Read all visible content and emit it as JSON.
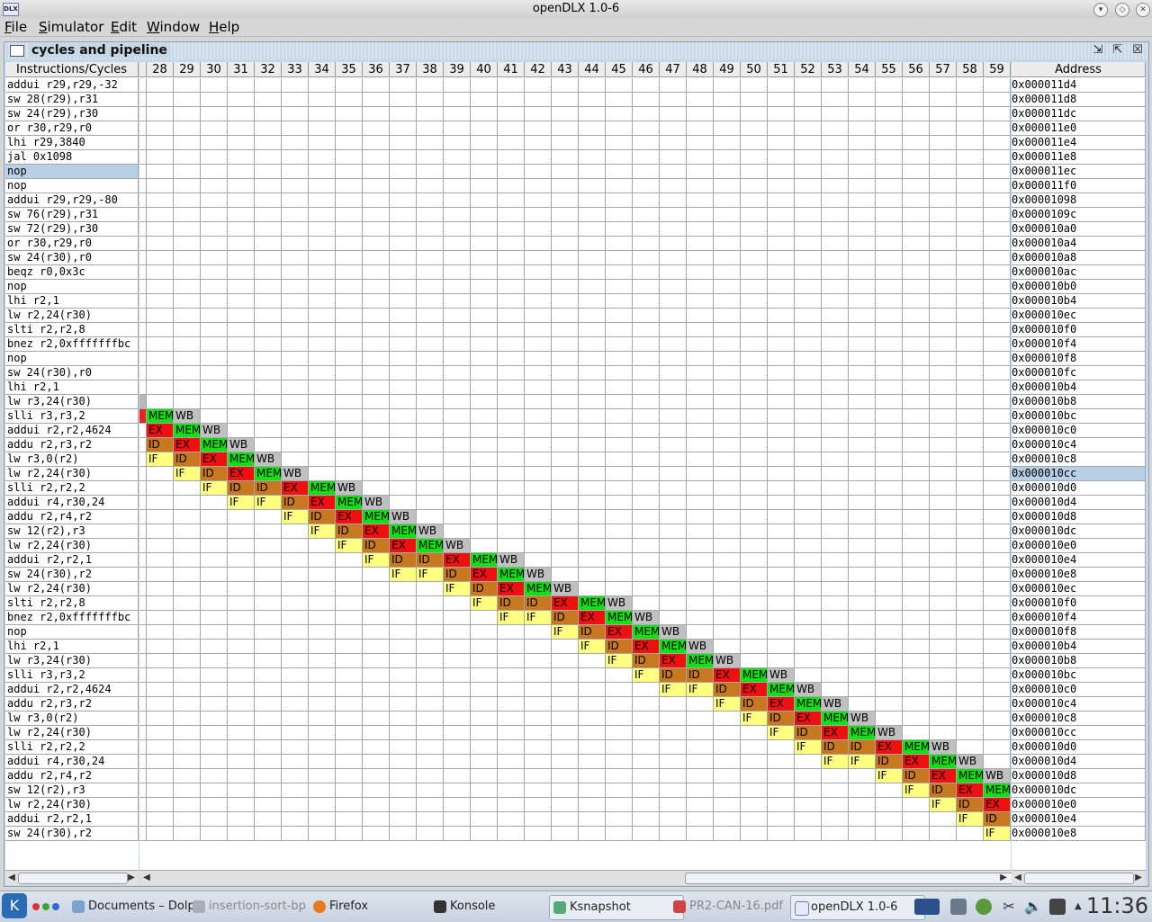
{
  "window": {
    "title": "openDLX 1.0-6",
    "logo": "DLX"
  },
  "menu": [
    {
      "mnemonic": "F",
      "rest": "ile"
    },
    {
      "mnemonic": "S",
      "rest": "imulator"
    },
    {
      "mnemonic": "E",
      "rest": "dit"
    },
    {
      "mnemonic": "W",
      "rest": "indow"
    },
    {
      "mnemonic": "H",
      "rest": "elp"
    }
  ],
  "frame": {
    "title": "cycles and pipeline"
  },
  "table": {
    "instr_header": "Instructions/Cycles",
    "addr_header": "Address",
    "cycles": [
      "28",
      "29",
      "30",
      "31",
      "32",
      "33",
      "34",
      "35",
      "36",
      "37",
      "38",
      "39",
      "40",
      "41",
      "42",
      "43",
      "44",
      "45",
      "46",
      "47",
      "48",
      "49",
      "50",
      "51",
      "52",
      "53",
      "54",
      "55",
      "56",
      "57",
      "58",
      "59"
    ],
    "first_cycle": 28,
    "selected_instruction_row": 6,
    "selected_address_row": 27,
    "rows": [
      {
        "instr": "addui r29,r29,-32",
        "addr": "0x000011d4",
        "stages": []
      },
      {
        "instr": "sw 28(r29),r31",
        "addr": "0x000011d8",
        "stages": []
      },
      {
        "instr": "sw 24(r29),r30",
        "addr": "0x000011dc",
        "stages": []
      },
      {
        "instr": "or r30,r29,r0",
        "addr": "0x000011e0",
        "stages": []
      },
      {
        "instr": "lhi r29,3840",
        "addr": "0x000011e4",
        "stages": []
      },
      {
        "instr": "jal 0x1098",
        "addr": "0x000011e8",
        "stages": []
      },
      {
        "instr": "nop",
        "addr": "0x000011ec",
        "stages": []
      },
      {
        "instr": "nop",
        "addr": "0x000011f0",
        "stages": []
      },
      {
        "instr": "addui r29,r29,-80",
        "addr": "0x00001098",
        "stages": []
      },
      {
        "instr": "sw 76(r29),r31",
        "addr": "0x0000109c",
        "stages": []
      },
      {
        "instr": "sw 72(r29),r30",
        "addr": "0x000010a0",
        "stages": []
      },
      {
        "instr": "or r30,r29,r0",
        "addr": "0x000010a4",
        "stages": []
      },
      {
        "instr": "sw 24(r30),r0",
        "addr": "0x000010a8",
        "stages": []
      },
      {
        "instr": "beqz r0,0x3c",
        "addr": "0x000010ac",
        "stages": []
      },
      {
        "instr": "nop",
        "addr": "0x000010b0",
        "stages": []
      },
      {
        "instr": "lhi r2,1",
        "addr": "0x000010b4",
        "stages": []
      },
      {
        "instr": "lw r2,24(r30)",
        "addr": "0x000010ec",
        "stages": []
      },
      {
        "instr": "slti r2,r2,8",
        "addr": "0x000010f0",
        "stages": []
      },
      {
        "instr": "bnez r2,0xfffffffbc",
        "addr": "0x000010f4",
        "stages": []
      },
      {
        "instr": "nop",
        "addr": "0x000010f8",
        "stages": []
      },
      {
        "instr": "sw 24(r30),r0",
        "addr": "0x000010fc",
        "stages": []
      },
      {
        "instr": "lhi r2,1",
        "addr": "0x000010b4",
        "stages": []
      },
      {
        "instr": "lw r3,24(r30)",
        "addr": "0x000010b8",
        "stages": [
          [
            27,
            ""
          ]
        ]
      },
      {
        "instr": "slli r3,r3,2",
        "addr": "0x000010bc",
        "stages": [
          [
            27,
            ""
          ],
          [
            28,
            "MEM"
          ],
          [
            29,
            "WB"
          ]
        ]
      },
      {
        "instr": "addui r2,r2,4624",
        "addr": "0x000010c0",
        "stages": [
          [
            28,
            "EX"
          ],
          [
            29,
            "MEM"
          ],
          [
            30,
            "WB"
          ]
        ]
      },
      {
        "instr": "addu r2,r3,r2",
        "addr": "0x000010c4",
        "stages": [
          [
            28,
            "ID"
          ],
          [
            29,
            "EX"
          ],
          [
            30,
            "MEM"
          ],
          [
            31,
            "WB"
          ]
        ]
      },
      {
        "instr": "lw r3,0(r2)",
        "addr": "0x000010c8",
        "stages": [
          [
            28,
            "IF"
          ],
          [
            29,
            "ID"
          ],
          [
            30,
            "EX"
          ],
          [
            31,
            "MEM"
          ],
          [
            32,
            "WB"
          ]
        ]
      },
      {
        "instr": "lw r2,24(r30)",
        "addr": "0x000010cc",
        "stages": [
          [
            29,
            "IF"
          ],
          [
            30,
            "ID"
          ],
          [
            31,
            "EX"
          ],
          [
            32,
            "MEM"
          ],
          [
            33,
            "WB"
          ]
        ]
      },
      {
        "instr": "slli r2,r2,2",
        "addr": "0x000010d0",
        "stages": [
          [
            30,
            "IF"
          ],
          [
            31,
            "ID"
          ],
          [
            32,
            "ID"
          ],
          [
            33,
            "EX"
          ],
          [
            34,
            "MEM"
          ],
          [
            35,
            "WB"
          ]
        ]
      },
      {
        "instr": "addui r4,r30,24",
        "addr": "0x000010d4",
        "stages": [
          [
            31,
            "IF"
          ],
          [
            32,
            "IF"
          ],
          [
            33,
            "ID"
          ],
          [
            34,
            "EX"
          ],
          [
            35,
            "MEM"
          ],
          [
            36,
            "WB"
          ]
        ]
      },
      {
        "instr": "addu r2,r4,r2",
        "addr": "0x000010d8",
        "stages": [
          [
            33,
            "IF"
          ],
          [
            34,
            "ID"
          ],
          [
            35,
            "EX"
          ],
          [
            36,
            "MEM"
          ],
          [
            37,
            "WB"
          ]
        ]
      },
      {
        "instr": "sw 12(r2),r3",
        "addr": "0x000010dc",
        "stages": [
          [
            34,
            "IF"
          ],
          [
            35,
            "ID"
          ],
          [
            36,
            "EX"
          ],
          [
            37,
            "MEM"
          ],
          [
            38,
            "WB"
          ]
        ]
      },
      {
        "instr": "lw r2,24(r30)",
        "addr": "0x000010e0",
        "stages": [
          [
            35,
            "IF"
          ],
          [
            36,
            "ID"
          ],
          [
            37,
            "EX"
          ],
          [
            38,
            "MEM"
          ],
          [
            39,
            "WB"
          ]
        ]
      },
      {
        "instr": "addui r2,r2,1",
        "addr": "0x000010e4",
        "stages": [
          [
            36,
            "IF"
          ],
          [
            37,
            "ID"
          ],
          [
            38,
            "ID"
          ],
          [
            39,
            "EX"
          ],
          [
            40,
            "MEM"
          ],
          [
            41,
            "WB"
          ]
        ]
      },
      {
        "instr": "sw 24(r30),r2",
        "addr": "0x000010e8",
        "stages": [
          [
            37,
            "IF"
          ],
          [
            38,
            "IF"
          ],
          [
            39,
            "ID"
          ],
          [
            40,
            "EX"
          ],
          [
            41,
            "MEM"
          ],
          [
            42,
            "WB"
          ]
        ]
      },
      {
        "instr": "lw r2,24(r30)",
        "addr": "0x000010ec",
        "stages": [
          [
            39,
            "IF"
          ],
          [
            40,
            "ID"
          ],
          [
            41,
            "EX"
          ],
          [
            42,
            "MEM"
          ],
          [
            43,
            "WB"
          ]
        ]
      },
      {
        "instr": "slti r2,r2,8",
        "addr": "0x000010f0",
        "stages": [
          [
            40,
            "IF"
          ],
          [
            41,
            "ID"
          ],
          [
            42,
            "ID"
          ],
          [
            43,
            "EX"
          ],
          [
            44,
            "MEM"
          ],
          [
            45,
            "WB"
          ]
        ]
      },
      {
        "instr": "bnez r2,0xfffffffbc",
        "addr": "0x000010f4",
        "stages": [
          [
            41,
            "IF"
          ],
          [
            42,
            "IF"
          ],
          [
            43,
            "ID"
          ],
          [
            44,
            "EX"
          ],
          [
            45,
            "MEM"
          ],
          [
            46,
            "WB"
          ]
        ]
      },
      {
        "instr": "nop",
        "addr": "0x000010f8",
        "stages": [
          [
            43,
            "IF"
          ],
          [
            44,
            "ID"
          ],
          [
            45,
            "EX"
          ],
          [
            46,
            "MEM"
          ],
          [
            47,
            "WB"
          ]
        ]
      },
      {
        "instr": "lhi r2,1",
        "addr": "0x000010b4",
        "stages": [
          [
            44,
            "IF"
          ],
          [
            45,
            "ID"
          ],
          [
            46,
            "EX"
          ],
          [
            47,
            "MEM"
          ],
          [
            48,
            "WB"
          ]
        ]
      },
      {
        "instr": "lw r3,24(r30)",
        "addr": "0x000010b8",
        "stages": [
          [
            45,
            "IF"
          ],
          [
            46,
            "ID"
          ],
          [
            47,
            "EX"
          ],
          [
            48,
            "MEM"
          ],
          [
            49,
            "WB"
          ]
        ]
      },
      {
        "instr": "slli r3,r3,2",
        "addr": "0x000010bc",
        "stages": [
          [
            46,
            "IF"
          ],
          [
            47,
            "ID"
          ],
          [
            48,
            "ID"
          ],
          [
            49,
            "EX"
          ],
          [
            50,
            "MEM"
          ],
          [
            51,
            "WB"
          ]
        ]
      },
      {
        "instr": "addui r2,r2,4624",
        "addr": "0x000010c0",
        "stages": [
          [
            47,
            "IF"
          ],
          [
            48,
            "IF"
          ],
          [
            49,
            "ID"
          ],
          [
            50,
            "EX"
          ],
          [
            51,
            "MEM"
          ],
          [
            52,
            "WB"
          ]
        ]
      },
      {
        "instr": "addu r2,r3,r2",
        "addr": "0x000010c4",
        "stages": [
          [
            49,
            "IF"
          ],
          [
            50,
            "ID"
          ],
          [
            51,
            "EX"
          ],
          [
            52,
            "MEM"
          ],
          [
            53,
            "WB"
          ]
        ]
      },
      {
        "instr": "lw r3,0(r2)",
        "addr": "0x000010c8",
        "stages": [
          [
            50,
            "IF"
          ],
          [
            51,
            "ID"
          ],
          [
            52,
            "EX"
          ],
          [
            53,
            "MEM"
          ],
          [
            54,
            "WB"
          ]
        ]
      },
      {
        "instr": "lw r2,24(r30)",
        "addr": "0x000010cc",
        "stages": [
          [
            51,
            "IF"
          ],
          [
            52,
            "ID"
          ],
          [
            53,
            "EX"
          ],
          [
            54,
            "MEM"
          ],
          [
            55,
            "WB"
          ]
        ]
      },
      {
        "instr": "slli r2,r2,2",
        "addr": "0x000010d0",
        "stages": [
          [
            52,
            "IF"
          ],
          [
            53,
            "ID"
          ],
          [
            54,
            "ID"
          ],
          [
            55,
            "EX"
          ],
          [
            56,
            "MEM"
          ],
          [
            57,
            "WB"
          ]
        ]
      },
      {
        "instr": "addui r4,r30,24",
        "addr": "0x000010d4",
        "stages": [
          [
            53,
            "IF"
          ],
          [
            54,
            "IF"
          ],
          [
            55,
            "ID"
          ],
          [
            56,
            "EX"
          ],
          [
            57,
            "MEM"
          ],
          [
            58,
            "WB"
          ]
        ]
      },
      {
        "instr": "addu r2,r4,r2",
        "addr": "0x000010d8",
        "stages": [
          [
            55,
            "IF"
          ],
          [
            56,
            "ID"
          ],
          [
            57,
            "EX"
          ],
          [
            58,
            "MEM"
          ],
          [
            59,
            "WB"
          ]
        ]
      },
      {
        "instr": "sw 12(r2),r3",
        "addr": "0x000010dc",
        "stages": [
          [
            56,
            "IF"
          ],
          [
            57,
            "ID"
          ],
          [
            58,
            "EX"
          ],
          [
            59,
            "MEM"
          ]
        ]
      },
      {
        "instr": "lw r2,24(r30)",
        "addr": "0x000010e0",
        "stages": [
          [
            57,
            "IF"
          ],
          [
            58,
            "ID"
          ],
          [
            59,
            "EX"
          ]
        ]
      },
      {
        "instr": "addui r2,r2,1",
        "addr": "0x000010e4",
        "stages": [
          [
            58,
            "IF"
          ],
          [
            59,
            "ID"
          ]
        ]
      },
      {
        "instr": "sw 24(r30),r2",
        "addr": "0x000010e8",
        "stages": [
          [
            59,
            "IF"
          ]
        ]
      }
    ]
  },
  "stage_colors": {
    "IF": "#ffff80",
    "ID": "#c8781e",
    "EX": "#f01010",
    "MEM": "#12e012",
    "WB": "#c0c0c0",
    "": "#ee2222"
  },
  "taskbar": {
    "tasks": [
      {
        "label": "Documents – Dolp",
        "dim": false,
        "active": false
      },
      {
        "label": "insertion-sort-bp",
        "dim": true,
        "active": false
      },
      {
        "label": "Firefox",
        "dim": false,
        "active": false
      },
      {
        "label": "Konsole",
        "dim": false,
        "active": false
      },
      {
        "label": "Ksnapshot",
        "dim": false,
        "active": true
      },
      {
        "label": "PR2-CAN-16.pdf",
        "dim": true,
        "active": false
      },
      {
        "label": "openDLX 1.0-6",
        "dim": false,
        "active": true
      }
    ],
    "clock": "11:36"
  }
}
